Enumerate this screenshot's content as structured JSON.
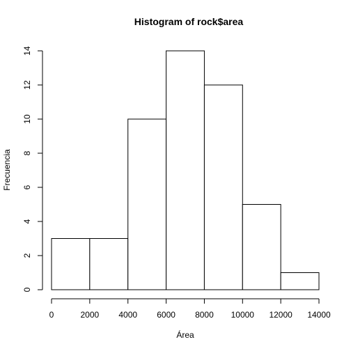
{
  "chart_data": {
    "type": "bar",
    "title": "Histogram of rock$area",
    "xlabel": "Área",
    "ylabel": "Frecuencia",
    "bins": [
      {
        "start": 0,
        "end": 2000,
        "count": 3
      },
      {
        "start": 2000,
        "end": 4000,
        "count": 3
      },
      {
        "start": 4000,
        "end": 6000,
        "count": 10
      },
      {
        "start": 6000,
        "end": 8000,
        "count": 14
      },
      {
        "start": 8000,
        "end": 10000,
        "count": 12
      },
      {
        "start": 10000,
        "end": 12000,
        "count": 5
      },
      {
        "start": 12000,
        "end": 14000,
        "count": 1
      }
    ],
    "xlim": [
      0,
      14000
    ],
    "ylim": [
      0,
      14
    ],
    "xticks": [
      0,
      2000,
      4000,
      6000,
      8000,
      10000,
      12000,
      14000
    ],
    "yticks": [
      0,
      2,
      4,
      6,
      8,
      10,
      12,
      14
    ],
    "grid": false,
    "colors": {
      "bar_fill": "#ffffff",
      "bar_stroke": "#000000"
    }
  }
}
